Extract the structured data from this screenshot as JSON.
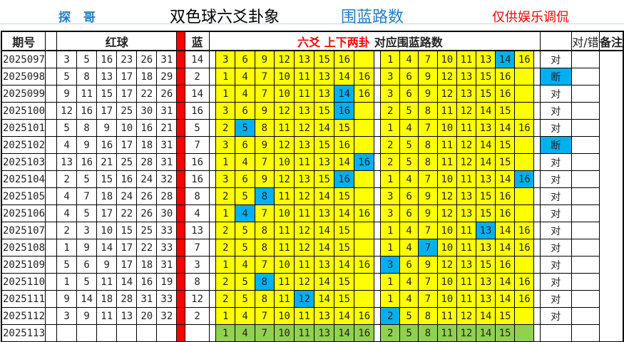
{
  "titles": {
    "author": "探 哥",
    "main": "双色球六爻卦象",
    "sub": "围蓝路数",
    "note": "仅供娱乐调侃"
  },
  "colors": {
    "highlight": "#00B0F0",
    "yellow": "#FFFF00",
    "green": "#92D050",
    "separator": "#FF0000"
  },
  "headers": {
    "issue": "期号",
    "red": "红球",
    "blue": "蓝",
    "yao": "六爻  上下两卦",
    "lanes": "对应围蓝路数",
    "result": "对/错",
    "remark": "备注"
  },
  "rows": [
    {
      "issue": "2025097",
      "red": [
        "3",
        "5",
        "16",
        "23",
        "26",
        "31"
      ],
      "blue": "14",
      "yao": [
        "3",
        "6",
        "9",
        "12",
        "13",
        "15",
        "16",
        ""
      ],
      "yao_hit": -1,
      "lanes": [
        "1",
        "4",
        "7",
        "10",
        "11",
        "13",
        "14",
        "16"
      ],
      "lanes_hit": 6,
      "result": "对",
      "result_hl": false
    },
    {
      "issue": "2025098",
      "red": [
        "5",
        "8",
        "13",
        "17",
        "18",
        "29"
      ],
      "blue": "2",
      "yao": [
        "1",
        "4",
        "7",
        "10",
        "11",
        "13",
        "14",
        "16"
      ],
      "yao_hit": -1,
      "lanes": [
        "3",
        "6",
        "9",
        "12",
        "13",
        "15",
        "16",
        ""
      ],
      "lanes_hit": -1,
      "result": "断",
      "result_hl": true
    },
    {
      "issue": "2025099",
      "red": [
        "9",
        "11",
        "15",
        "17",
        "22",
        "26"
      ],
      "blue": "14",
      "yao": [
        "1",
        "4",
        "7",
        "10",
        "11",
        "13",
        "14",
        "16"
      ],
      "yao_hit": 6,
      "lanes": [
        "3",
        "6",
        "9",
        "12",
        "13",
        "15",
        "16",
        ""
      ],
      "lanes_hit": -1,
      "result": "对",
      "result_hl": false
    },
    {
      "issue": "2025100",
      "red": [
        "12",
        "16",
        "17",
        "25",
        "30",
        "31"
      ],
      "blue": "16",
      "yao": [
        "3",
        "6",
        "9",
        "12",
        "13",
        "15",
        "16",
        ""
      ],
      "yao_hit": 6,
      "lanes": [
        "2",
        "5",
        "8",
        "11",
        "12",
        "14",
        "15",
        ""
      ],
      "lanes_hit": -1,
      "result": "对",
      "result_hl": false
    },
    {
      "issue": "2025101",
      "red": [
        "5",
        "8",
        "9",
        "10",
        "16",
        "21"
      ],
      "blue": "5",
      "yao": [
        "2",
        "5",
        "8",
        "11",
        "12",
        "14",
        "15",
        ""
      ],
      "yao_hit": 1,
      "lanes": [
        "1",
        "4",
        "7",
        "10",
        "11",
        "13",
        "14",
        "16"
      ],
      "lanes_hit": -1,
      "result": "对",
      "result_hl": false
    },
    {
      "issue": "2025102",
      "red": [
        "4",
        "9",
        "16",
        "17",
        "18",
        "31"
      ],
      "blue": "7",
      "yao": [
        "3",
        "6",
        "9",
        "12",
        "13",
        "15",
        "16",
        ""
      ],
      "yao_hit": -1,
      "lanes": [
        "2",
        "5",
        "8",
        "11",
        "12",
        "14",
        "15",
        ""
      ],
      "lanes_hit": -1,
      "result": "断",
      "result_hl": true
    },
    {
      "issue": "2025103",
      "red": [
        "13",
        "16",
        "21",
        "25",
        "28",
        "31"
      ],
      "blue": "16",
      "yao": [
        "1",
        "4",
        "7",
        "10",
        "11",
        "13",
        "14",
        "16"
      ],
      "yao_hit": 7,
      "lanes": [
        "2",
        "5",
        "8",
        "11",
        "12",
        "14",
        "15",
        ""
      ],
      "lanes_hit": -1,
      "result": "对",
      "result_hl": false
    },
    {
      "issue": "2025104",
      "red": [
        "2",
        "5",
        "15",
        "16",
        "24",
        "32"
      ],
      "blue": "16",
      "yao": [
        "3",
        "6",
        "9",
        "12",
        "13",
        "15",
        "16",
        ""
      ],
      "yao_hit": 6,
      "lanes": [
        "1",
        "4",
        "7",
        "10",
        "11",
        "13",
        "14",
        "16"
      ],
      "lanes_hit": 7,
      "result": "对",
      "result_hl": false
    },
    {
      "issue": "2025105",
      "red": [
        "4",
        "7",
        "18",
        "24",
        "26",
        "28"
      ],
      "blue": "8",
      "yao": [
        "2",
        "5",
        "8",
        "11",
        "12",
        "14",
        "15",
        ""
      ],
      "yao_hit": 2,
      "lanes": [
        "3",
        "6",
        "9",
        "12",
        "13",
        "15",
        "16",
        ""
      ],
      "lanes_hit": -1,
      "result": "对",
      "result_hl": false
    },
    {
      "issue": "2025106",
      "red": [
        "4",
        "5",
        "17",
        "22",
        "26",
        "30"
      ],
      "blue": "4",
      "yao": [
        "1",
        "4",
        "7",
        "10",
        "11",
        "13",
        "14",
        "16"
      ],
      "yao_hit": 1,
      "lanes": [
        "3",
        "6",
        "9",
        "12",
        "13",
        "15",
        "16",
        ""
      ],
      "lanes_hit": -1,
      "result": "对",
      "result_hl": false
    },
    {
      "issue": "2025107",
      "red": [
        "2",
        "3",
        "10",
        "15",
        "25",
        "33"
      ],
      "blue": "13",
      "yao": [
        "2",
        "5",
        "8",
        "11",
        "12",
        "14",
        "15",
        ""
      ],
      "yao_hit": -1,
      "lanes": [
        "1",
        "4",
        "7",
        "10",
        "11",
        "13",
        "14",
        "16"
      ],
      "lanes_hit": 5,
      "result": "对",
      "result_hl": false
    },
    {
      "issue": "2025108",
      "red": [
        "1",
        "9",
        "14",
        "17",
        "22",
        "33"
      ],
      "blue": "7",
      "yao": [
        "2",
        "5",
        "8",
        "11",
        "12",
        "14",
        "15",
        ""
      ],
      "yao_hit": -1,
      "lanes": [
        "1",
        "4",
        "7",
        "10",
        "11",
        "13",
        "14",
        "16"
      ],
      "lanes_hit": 2,
      "result": "对",
      "result_hl": false
    },
    {
      "issue": "2025109",
      "red": [
        "5",
        "6",
        "9",
        "17",
        "18",
        "31"
      ],
      "blue": "3",
      "yao": [
        "1",
        "4",
        "7",
        "10",
        "11",
        "13",
        "14",
        "16"
      ],
      "yao_hit": -1,
      "lanes": [
        "3",
        "6",
        "9",
        "12",
        "13",
        "15",
        "16",
        ""
      ],
      "lanes_hit": 0,
      "result": "对",
      "result_hl": false
    },
    {
      "issue": "2025110",
      "red": [
        "1",
        "5",
        "11",
        "14",
        "16",
        "19"
      ],
      "blue": "8",
      "yao": [
        "2",
        "5",
        "8",
        "11",
        "12",
        "14",
        "15",
        ""
      ],
      "yao_hit": 2,
      "lanes": [
        "1",
        "4",
        "7",
        "10",
        "11",
        "13",
        "14",
        "16"
      ],
      "lanes_hit": -1,
      "result": "对",
      "result_hl": false
    },
    {
      "issue": "2025111",
      "red": [
        "9",
        "14",
        "18",
        "28",
        "31",
        "33"
      ],
      "blue": "12",
      "yao": [
        "2",
        "5",
        "8",
        "11",
        "12",
        "14",
        "15",
        ""
      ],
      "yao_hit": 4,
      "lanes": [
        "1",
        "4",
        "7",
        "10",
        "11",
        "13",
        "14",
        "16"
      ],
      "lanes_hit": -1,
      "result": "对",
      "result_hl": false
    },
    {
      "issue": "2025112",
      "red": [
        "3",
        "9",
        "11",
        "13",
        "20",
        "32"
      ],
      "blue": "2",
      "yao": [
        "1",
        "4",
        "7",
        "10",
        "11",
        "13",
        "14",
        "16"
      ],
      "yao_hit": -1,
      "lanes": [
        "2",
        "5",
        "8",
        "11",
        "12",
        "14",
        "15",
        ""
      ],
      "lanes_hit": 0,
      "result": "对",
      "result_hl": false
    },
    {
      "issue": "2025113",
      "red": [
        "",
        "",
        "",
        "",
        "",
        ""
      ],
      "blue": "",
      "yao": [
        "1",
        "4",
        "7",
        "10",
        "11",
        "13",
        "14",
        "16"
      ],
      "yao_hit": -1,
      "lanes": [
        "2",
        "5",
        "8",
        "11",
        "12",
        "14",
        "15",
        ""
      ],
      "lanes_hit": -1,
      "result": "",
      "result_hl": false,
      "prediction": true
    }
  ]
}
